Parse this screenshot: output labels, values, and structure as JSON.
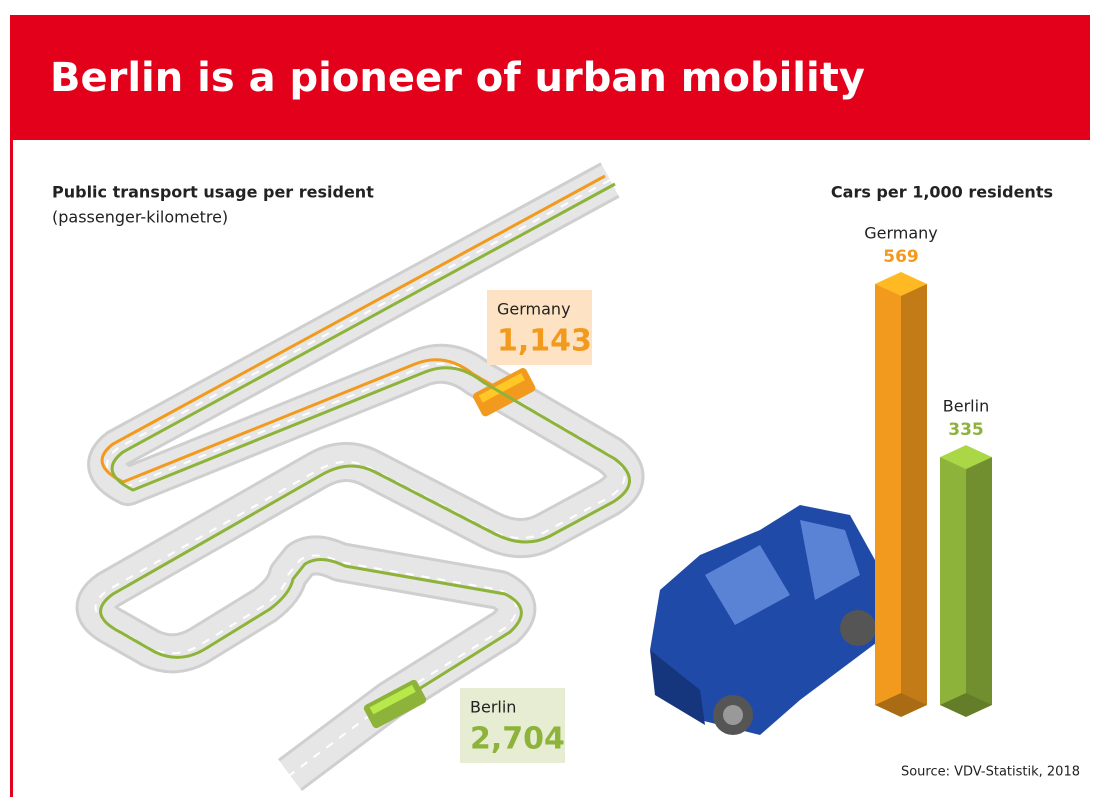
{
  "title": "Berlin is a pioneer of urban mobility",
  "source": "Source: VDV-Statistik, 2018",
  "chart_data": [
    {
      "type": "road",
      "title": "Public transport usage per resident",
      "subtitle": "(passenger-kilometre)",
      "categories": [
        "Germany",
        "Berlin"
      ],
      "values": [
        1143,
        2704
      ],
      "value_labels": [
        "1,143",
        "2,704"
      ],
      "colors": [
        "#f29a1d",
        "#8db33a"
      ]
    },
    {
      "type": "bar",
      "title": "Cars per 1,000 residents",
      "categories": [
        "Germany",
        "Berlin"
      ],
      "values": [
        569,
        335
      ],
      "colors": [
        "#f29a1d",
        "#8db33a"
      ]
    }
  ]
}
